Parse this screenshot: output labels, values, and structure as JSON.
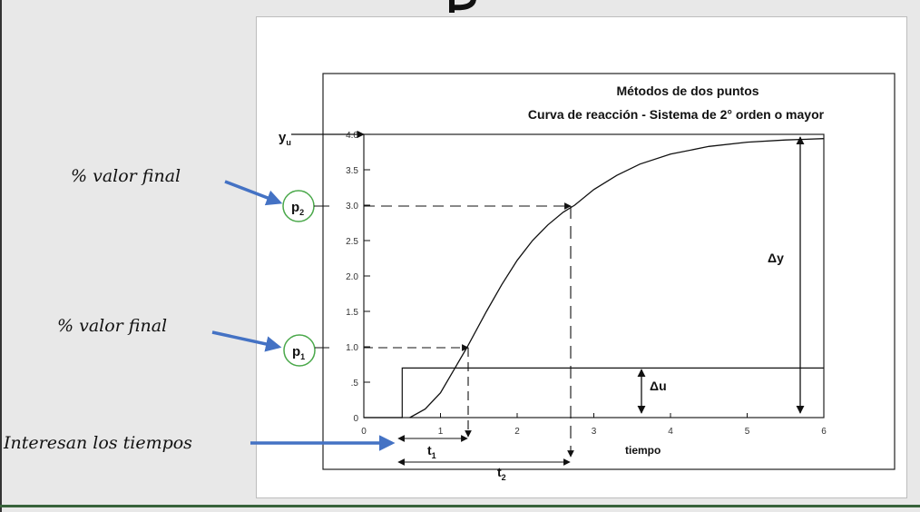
{
  "page": {
    "colors": {
      "background": "#e8e8e8",
      "arrow": "#4472c4",
      "circle": "#4aa84a",
      "bottom_rule": "#37633a"
    }
  },
  "annotations": {
    "p2_note": "% valor final",
    "p1_note": "% valor final",
    "times_note": "Interesan los tiempos"
  },
  "figure": {
    "title_line1": "Métodos de dos puntos",
    "title_line2": "Curva de reacción - Sistema de 2° orden o mayor",
    "y_labels": {
      "yu": "y",
      "yu_sub": "u",
      "p2": "p",
      "p2_sub": "2",
      "p1": "p",
      "p1_sub": "1"
    },
    "y_ticks": [
      "4.0",
      "3.5",
      "3.0",
      "2.5",
      "2.0",
      "1.5",
      "1.0",
      ".5",
      "0"
    ],
    "x_ticks": [
      "0",
      "1",
      "2",
      "3",
      "4",
      "5",
      "6"
    ],
    "x_label": "tiempo",
    "delta_y": "Δy",
    "delta_u": "Δu",
    "t1": "t",
    "t1_sub": "1",
    "t2": "t",
    "t2_sub": "2"
  },
  "chart_data": {
    "type": "line",
    "xlabel": "tiempo",
    "xlim": [
      0,
      6
    ],
    "ylim": [
      0,
      4
    ],
    "series": [
      {
        "x": [
          0.6,
          0.8,
          1.0,
          1.2,
          1.35,
          1.6,
          1.8,
          2.0,
          2.2,
          2.4,
          2.6,
          2.75,
          3.0,
          3.3,
          3.6,
          4.0,
          4.5,
          5.0,
          5.5,
          6.0
        ],
        "y": [
          0.0,
          0.12,
          0.35,
          0.72,
          1.0,
          1.5,
          1.88,
          2.22,
          2.5,
          2.72,
          2.9,
          3.0,
          3.22,
          3.42,
          3.58,
          3.72,
          3.83,
          3.89,
          3.92,
          3.94
        ]
      },
      {
        "x": [
          0,
          0.5,
          0.5,
          6.0
        ],
        "y": [
          0,
          0,
          0.7,
          0.7
        ]
      }
    ],
    "markers": {
      "p1": {
        "t": 1.35,
        "y": 1.0
      },
      "p2": {
        "t": 2.75,
        "y": 3.0
      },
      "step_time": 0.5,
      "yu": 4.0
    }
  }
}
